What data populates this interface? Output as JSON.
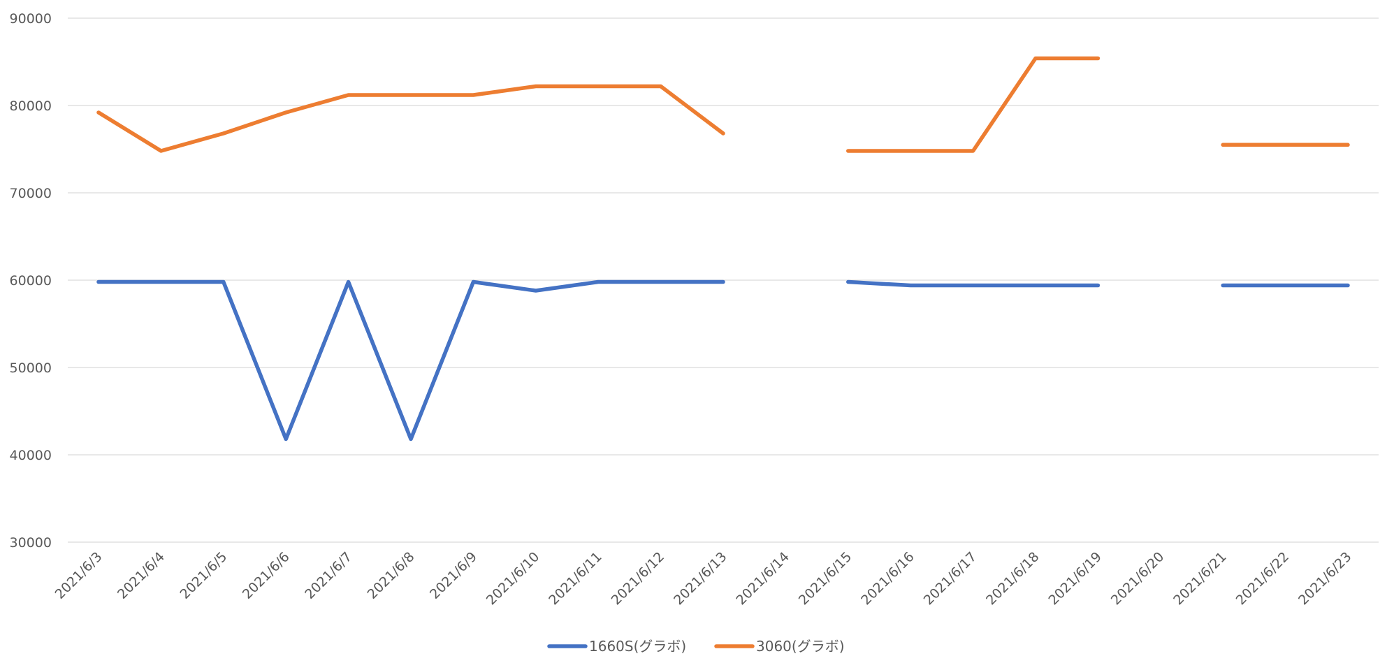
{
  "chart_data": {
    "type": "line",
    "title": "",
    "xlabel": "",
    "ylabel": "",
    "ylim": [
      30000,
      90000
    ],
    "yticks": [
      30000,
      40000,
      50000,
      60000,
      70000,
      80000,
      90000
    ],
    "grid": true,
    "legend": "bottom",
    "categories": [
      "2021/6/3",
      "2021/6/4",
      "2021/6/5",
      "2021/6/6",
      "2021/6/7",
      "2021/6/8",
      "2021/6/9",
      "2021/6/10",
      "2021/6/11",
      "2021/6/12",
      "2021/6/13",
      "2021/6/14",
      "2021/6/15",
      "2021/6/16",
      "2021/6/17",
      "2021/6/18",
      "2021/6/19",
      "2021/6/20",
      "2021/6/21",
      "2021/6/22",
      "2021/6/23"
    ],
    "series": [
      {
        "name": "1660S(グラボ)",
        "color": "#4472C4",
        "values": [
          59800,
          59800,
          59800,
          41800,
          59800,
          41800,
          59800,
          58800,
          59800,
          59800,
          59800,
          null,
          59800,
          59400,
          59400,
          59400,
          59400,
          null,
          59400,
          59400,
          59400
        ]
      },
      {
        "name": "3060(グラボ)",
        "color": "#ED7D31",
        "values": [
          79200,
          74800,
          76800,
          79200,
          81200,
          81200,
          81200,
          82200,
          82200,
          82200,
          76800,
          null,
          74800,
          74800,
          74800,
          85400,
          85400,
          null,
          75500,
          75500,
          75500
        ]
      }
    ]
  }
}
